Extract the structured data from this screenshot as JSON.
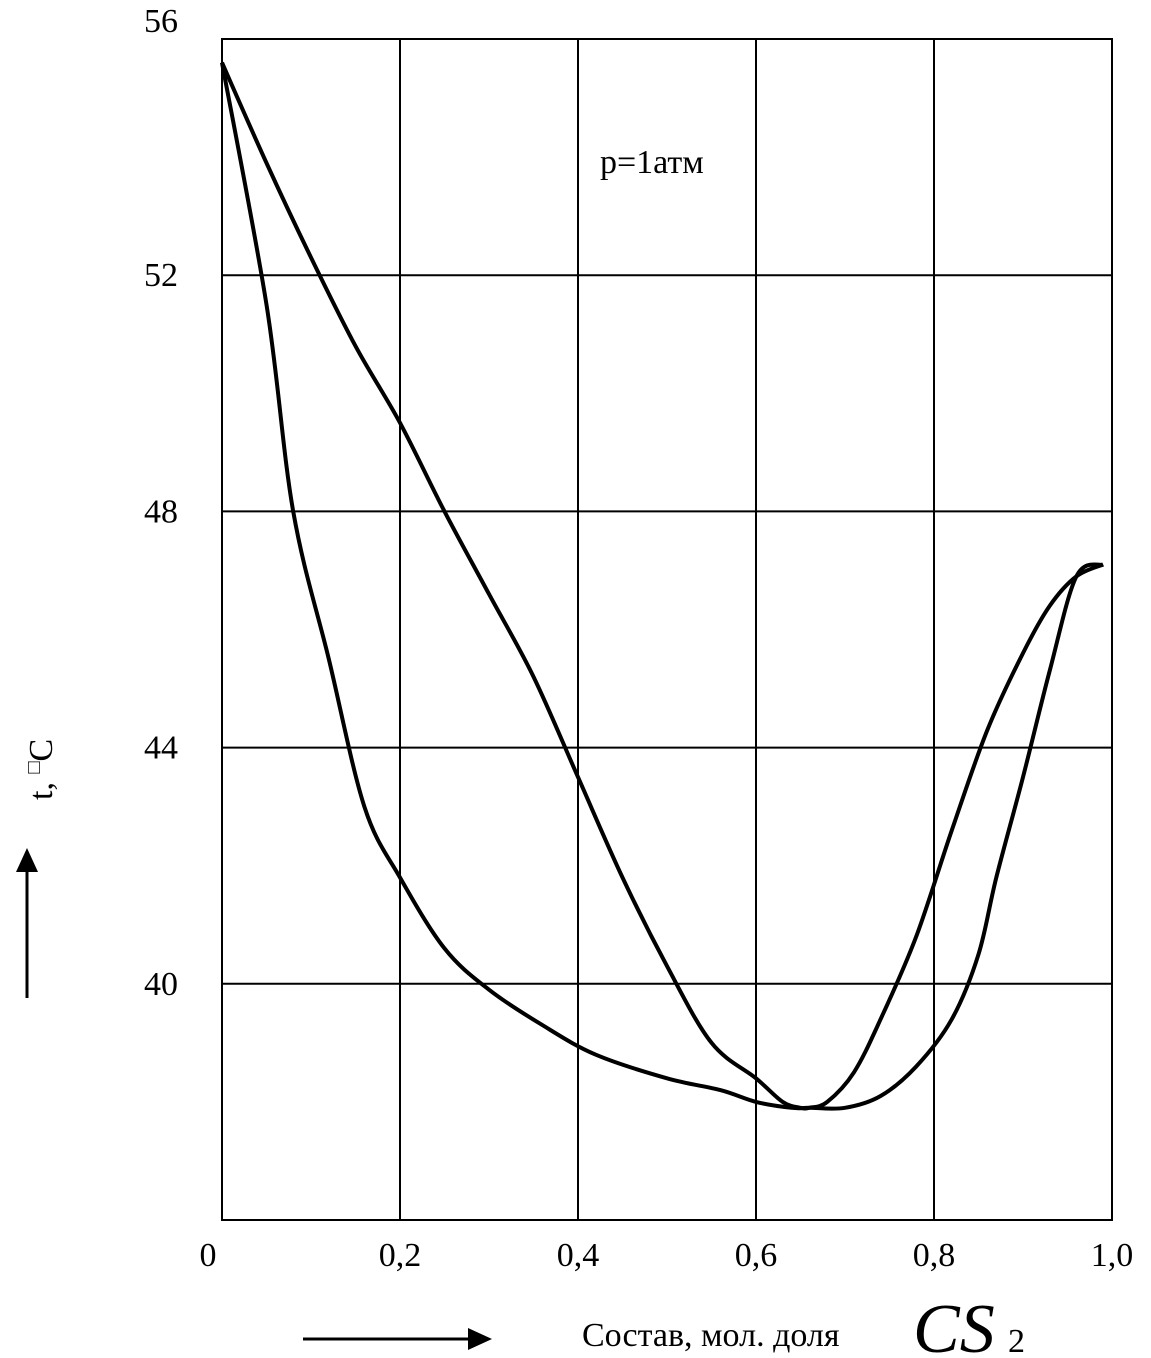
{
  "chart_data": {
    "type": "line",
    "title": "",
    "annotation": "p=1атм",
    "xlabel": "Состав, мол. доля",
    "xlabel_formula_main": "CS",
    "xlabel_formula_sub": "2",
    "ylabel_main": "t, ",
    "ylabel_unit": "C",
    "ylabel_degree_mark": "□",
    "xlim": [
      0,
      1.0
    ],
    "ylim": [
      36,
      56
    ],
    "xticks": [
      {
        "value": 0,
        "label": "0"
      },
      {
        "value": 0.2,
        "label": "0,2"
      },
      {
        "value": 0.4,
        "label": "0,4"
      },
      {
        "value": 0.6,
        "label": "0,6"
      },
      {
        "value": 0.8,
        "label": "0,8"
      },
      {
        "value": 1.0,
        "label": "1,0"
      }
    ],
    "yticks": [
      {
        "value": 40,
        "label": "40"
      },
      {
        "value": 44,
        "label": "44"
      },
      {
        "value": 48,
        "label": "48"
      },
      {
        "value": 52,
        "label": "52"
      },
      {
        "value": 56,
        "label": "56"
      }
    ],
    "grid": true,
    "series": [
      {
        "x": [
          0.0,
          0.05,
          0.08,
          0.12,
          0.16,
          0.2,
          0.25,
          0.3,
          0.36,
          0.42,
          0.5,
          0.56,
          0.6,
          0.64,
          0.66,
          0.7,
          0.74,
          0.78,
          0.82,
          0.85,
          0.87,
          0.9,
          0.93,
          0.96,
          0.99
        ],
        "y": [
          55.6,
          51.5,
          48.0,
          45.5,
          43.0,
          41.8,
          40.6,
          39.9,
          39.3,
          38.8,
          38.4,
          38.2,
          38.0,
          37.9,
          37.9,
          37.9,
          38.1,
          38.6,
          39.4,
          40.5,
          41.8,
          43.5,
          45.3,
          46.9,
          47.1
        ]
      },
      {
        "x": [
          0.0,
          0.05,
          0.1,
          0.15,
          0.2,
          0.25,
          0.3,
          0.35,
          0.4,
          0.45,
          0.5,
          0.55,
          0.6,
          0.63,
          0.65,
          0.66,
          0.68,
          0.71,
          0.74,
          0.78,
          0.82,
          0.86,
          0.9,
          0.93,
          0.96,
          0.99
        ],
        "y": [
          55.6,
          53.9,
          52.3,
          50.8,
          49.5,
          48.0,
          46.6,
          45.2,
          43.5,
          41.8,
          40.3,
          39.0,
          38.4,
          38.0,
          37.9,
          37.9,
          38.0,
          38.5,
          39.4,
          40.8,
          42.6,
          44.3,
          45.6,
          46.4,
          46.9,
          47.1
        ]
      }
    ]
  }
}
